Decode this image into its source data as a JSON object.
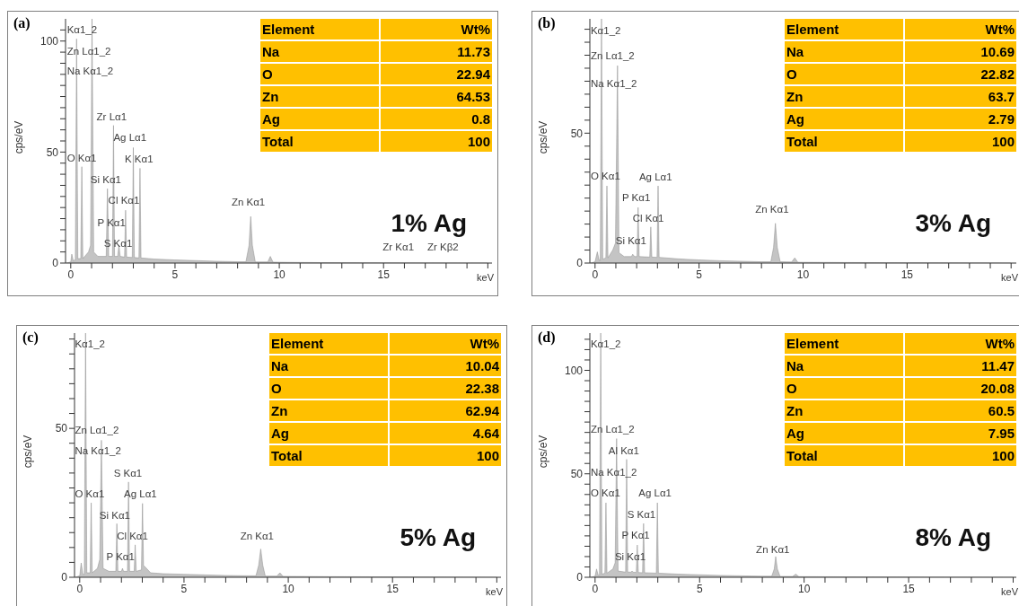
{
  "chart_data": [
    {
      "type": "area",
      "title": "(a)",
      "subtitle": "1% Ag",
      "xlabel": "keV",
      "ylabel": "cps/eV",
      "xlim": [
        -0.25,
        20.2
      ],
      "ylim": [
        0,
        110
      ],
      "xticks": [
        0,
        {
          "value": 1,
          "label": null
        },
        {
          "value": 2,
          "label": null
        },
        {
          "value": 3,
          "label": null
        },
        {
          "value": 4,
          "label": null
        },
        5,
        {
          "value": 6,
          "label": null
        },
        {
          "value": 7,
          "label": null
        },
        {
          "value": 8,
          "label": null
        },
        {
          "value": 9,
          "label": null
        },
        10,
        {
          "value": 11,
          "label": null
        },
        {
          "value": 12,
          "label": null
        },
        {
          "value": 13,
          "label": null
        },
        {
          "value": 14,
          "label": null
        },
        15,
        {
          "value": 16,
          "label": null
        },
        {
          "value": 17,
          "label": null
        },
        {
          "value": 18,
          "label": null
        },
        {
          "value": 19,
          "label": null
        },
        {
          "value": 20,
          "label": null
        }
      ],
      "yticks": [
        0,
        {
          "value": 5,
          "label": null
        },
        {
          "value": 10,
          "label": null
        },
        {
          "value": 15,
          "label": null
        },
        {
          "value": 20,
          "label": null
        },
        {
          "value": 25,
          "label": null
        },
        {
          "value": 30,
          "label": null
        },
        {
          "value": 35,
          "label": null
        },
        {
          "value": 40,
          "label": null
        },
        {
          "value": 45,
          "label": null
        },
        50,
        {
          "value": 55,
          "label": null
        },
        {
          "value": 60,
          "label": null
        },
        {
          "value": 65,
          "label": null
        },
        {
          "value": 70,
          "label": null
        },
        {
          "value": 75,
          "label": null
        },
        {
          "value": 80,
          "label": null
        },
        {
          "value": 85,
          "label": null
        },
        {
          "value": 90,
          "label": null
        },
        {
          "value": 95,
          "label": null
        },
        100,
        {
          "value": 105,
          "label": null
        }
      ],
      "series": [
        {
          "color": "#8c8c8c",
          "x": [
            -0.2,
            0,
            0.05,
            0.12,
            0.22,
            0.28,
            0.34,
            0.48,
            0.53,
            0.58,
            0.85,
            0.95,
            1.02,
            1.1,
            1.3,
            1.7,
            1.76,
            1.82,
            2.0,
            2.05,
            2.1,
            2.25,
            2.31,
            2.37,
            2.58,
            2.63,
            2.68,
            2.95,
            3.0,
            3.05,
            3.27,
            3.32,
            3.37,
            4,
            5,
            6,
            7,
            8,
            8.4,
            8.55,
            8.63,
            8.71,
            8.85,
            9.45,
            9.57,
            9.7,
            10.5,
            12,
            15,
            20
          ],
          "values": [
            0,
            0.5,
            4,
            1,
            1.5,
            101,
            2,
            2,
            43.4,
            2,
            5,
            8,
            110,
            5,
            3,
            3,
            33.5,
            3,
            3,
            62,
            3,
            3,
            8,
            3,
            2.7,
            23.8,
            2.7,
            2.5,
            52,
            2.5,
            2.3,
            42.7,
            2.3,
            1.8,
            1.4,
            1.1,
            0.8,
            0.6,
            0.6,
            8,
            21,
            8,
            0.5,
            0.5,
            3,
            0.4,
            0.3,
            0.2,
            0.1,
            0
          ]
        }
      ],
      "annotations": [
        "Element",
        "Wt%",
        "Na",
        "11.73",
        "O",
        "22.94",
        "Zn",
        "64.53",
        "Ag",
        "0.8",
        "Total",
        "100",
        "Kα1_2",
        "Zn Lα1_2",
        "Na Kα1_2",
        "Zr Lα1",
        "Ag Lα1",
        "O Kα1",
        "K Kα1",
        "Si Kα1",
        "Cl Kα1",
        "P Kα1",
        "S Kα1",
        "Zn Kα1",
        "Zr Kα1",
        "Zr Kβ2"
      ]
    },
    {
      "type": "area",
      "title": "(b)",
      "subtitle": "3% Ag",
      "xlabel": "keV",
      "ylabel": "cps/eV",
      "xlim": [
        -0.25,
        20.25
      ],
      "ylim": [
        0,
        94
      ],
      "xticks": [
        0,
        {
          "value": 1,
          "label": null
        },
        {
          "value": 2,
          "label": null
        },
        {
          "value": 3,
          "label": null
        },
        {
          "value": 4,
          "label": null
        },
        5,
        {
          "value": 6,
          "label": null
        },
        {
          "value": 7,
          "label": null
        },
        {
          "value": 8,
          "label": null
        },
        {
          "value": 9,
          "label": null
        },
        10,
        {
          "value": 11,
          "label": null
        },
        {
          "value": 12,
          "label": null
        },
        {
          "value": 13,
          "label": null
        },
        {
          "value": 14,
          "label": null
        },
        15,
        {
          "value": 16,
          "label": null
        },
        {
          "value": 17,
          "label": null
        },
        {
          "value": 18,
          "label": null
        },
        {
          "value": 19,
          "label": null
        },
        {
          "value": 20,
          "label": null
        }
      ],
      "yticks": [
        0,
        {
          "value": 5,
          "label": null
        },
        {
          "value": 10,
          "label": null
        },
        {
          "value": 15,
          "label": null
        },
        {
          "value": 20,
          "label": null
        },
        {
          "value": 25,
          "label": null
        },
        {
          "value": 30,
          "label": null
        },
        {
          "value": 35,
          "label": null
        },
        {
          "value": 40,
          "label": null
        },
        {
          "value": 45,
          "label": null
        },
        50,
        {
          "value": 55,
          "label": null
        },
        {
          "value": 60,
          "label": null
        },
        {
          "value": 65,
          "label": null
        },
        {
          "value": 70,
          "label": null
        },
        {
          "value": 75,
          "label": null
        },
        {
          "value": 80,
          "label": null
        },
        {
          "value": 85,
          "label": null
        },
        {
          "value": 90,
          "label": null
        }
      ],
      "series": [
        {
          "color": "#8c8c8c",
          "x": [
            -0.2,
            0,
            0.11,
            0.2,
            0.25,
            0.31,
            0.37,
            0.52,
            0.57,
            0.62,
            0.85,
            0.98,
            1.08,
            1.15,
            1.4,
            1.75,
            1.81,
            1.9,
            2.02,
            2.07,
            2.12,
            2.63,
            2.68,
            2.73,
            2.98,
            3.03,
            3.08,
            4,
            5,
            6,
            7,
            8,
            8.45,
            8.58,
            8.67,
            8.76,
            8.9,
            9.45,
            9.6,
            9.75,
            12,
            20
          ],
          "values": [
            0,
            0.5,
            4.3,
            1,
            1,
            94,
            1.5,
            2,
            29.7,
            2,
            5,
            7.7,
            76,
            4,
            2.5,
            2.5,
            3.4,
            2.5,
            2.5,
            21.4,
            2.5,
            2.3,
            13.9,
            2.3,
            2.2,
            29.7,
            2.2,
            1.6,
            1.2,
            0.9,
            0.7,
            0.5,
            0.5,
            6,
            15.3,
            6,
            0.5,
            0.4,
            2,
            0.3,
            0.2,
            0
          ]
        }
      ],
      "annotations": [
        "Element",
        "Wt%",
        "Na",
        "10.69",
        "O",
        "22.82",
        "Zn",
        "63.7",
        "Ag",
        "2.79",
        "Total",
        "100",
        "Kα1_2",
        "Zn Lα1_2",
        "Na Kα1_2",
        "O Kα1",
        "Ag Lα1",
        "P Kα1",
        "Cl Kα1",
        "Si Kα1",
        "Zn Kα1"
      ]
    },
    {
      "type": "area",
      "title": "(c)",
      "subtitle": "5% Ag",
      "xlabel": "keV",
      "ylabel": "cps/eV",
      "xlim": [
        -0.25,
        20.2
      ],
      "ylim": [
        0,
        82
      ],
      "xticks": [
        0,
        {
          "value": 1,
          "label": null
        },
        {
          "value": 2,
          "label": null
        },
        {
          "value": 3,
          "label": null
        },
        {
          "value": 4,
          "label": null
        },
        5,
        {
          "value": 6,
          "label": null
        },
        {
          "value": 7,
          "label": null
        },
        {
          "value": 8,
          "label": null
        },
        {
          "value": 9,
          "label": null
        },
        10,
        {
          "value": 11,
          "label": null
        },
        {
          "value": 12,
          "label": null
        },
        {
          "value": 13,
          "label": null
        },
        {
          "value": 14,
          "label": null
        },
        15,
        {
          "value": 16,
          "label": null
        },
        {
          "value": 17,
          "label": null
        },
        {
          "value": 18,
          "label": null
        },
        {
          "value": 19,
          "label": null
        },
        {
          "value": 20,
          "label": null
        }
      ],
      "yticks": [
        0,
        {
          "value": 5,
          "label": null
        },
        {
          "value": 10,
          "label": null
        },
        {
          "value": 15,
          "label": null
        },
        {
          "value": 20,
          "label": null
        },
        {
          "value": 25,
          "label": null
        },
        {
          "value": 30,
          "label": null
        },
        {
          "value": 35,
          "label": null
        },
        {
          "value": 40,
          "label": null
        },
        {
          "value": 45,
          "label": null
        },
        50,
        {
          "value": 55,
          "label": null
        },
        {
          "value": 60,
          "label": null
        },
        {
          "value": 65,
          "label": null
        },
        {
          "value": 70,
          "label": null
        },
        {
          "value": 75,
          "label": null
        },
        {
          "value": 80,
          "label": null
        }
      ],
      "series": [
        {
          "color": "#8c8c8c",
          "x": [
            -0.2,
            0,
            0.07,
            0.15,
            0.22,
            0.28,
            0.34,
            0.5,
            0.55,
            0.6,
            0.85,
            0.96,
            1.04,
            1.12,
            1.4,
            1.73,
            1.78,
            1.83,
            2.0,
            2.05,
            2.1,
            2.29,
            2.34,
            2.39,
            2.61,
            2.66,
            2.71,
            2.96,
            3.01,
            3.06,
            3.2,
            3.4,
            4,
            5,
            6,
            7,
            8,
            8.45,
            8.58,
            8.68,
            8.78,
            8.9,
            9.45,
            9.6,
            9.75,
            12,
            20
          ],
          "values": [
            0,
            0.5,
            4.8,
            1,
            1,
            82,
            1.5,
            1.5,
            25,
            1.5,
            3,
            6,
            46,
            3,
            2,
            2,
            18,
            2,
            2,
            3,
            2,
            2,
            32,
            2,
            2,
            10.9,
            2,
            2.5,
            24.8,
            4,
            3,
            1.5,
            1.2,
            1,
            0.8,
            0.6,
            0.5,
            0.5,
            4,
            9.5,
            4,
            0.4,
            0.4,
            1.5,
            0.3,
            0.2,
            0
          ]
        }
      ],
      "annotations": [
        "Element",
        "Wt%",
        "Na",
        "10.04",
        "O",
        "22.38",
        "Zn",
        "62.94",
        "Ag",
        "4.64",
        "Total",
        "100",
        "Kα1_2",
        "Zn Lα1_2",
        "Na Kα1_2",
        "S Kα1",
        "O Kα1",
        "Ag Lα1",
        "Si Kα1",
        "Cl Kα1",
        "P Kα1",
        "Zn Kα1"
      ]
    },
    {
      "type": "area",
      "title": "(d)",
      "subtitle": "8% Ag",
      "xlabel": "keV",
      "ylabel": "cps/eV",
      "xlim": [
        -0.25,
        20.15
      ],
      "ylim": [
        0,
        118
      ],
      "xticks": [
        0,
        {
          "value": 1,
          "label": null
        },
        {
          "value": 2,
          "label": null
        },
        {
          "value": 3,
          "label": null
        },
        {
          "value": 4,
          "label": null
        },
        5,
        {
          "value": 6,
          "label": null
        },
        {
          "value": 7,
          "label": null
        },
        {
          "value": 8,
          "label": null
        },
        {
          "value": 9,
          "label": null
        },
        10,
        {
          "value": 11,
          "label": null
        },
        {
          "value": 12,
          "label": null
        },
        {
          "value": 13,
          "label": null
        },
        {
          "value": 14,
          "label": null
        },
        15,
        {
          "value": 16,
          "label": null
        },
        {
          "value": 17,
          "label": null
        },
        {
          "value": 18,
          "label": null
        },
        {
          "value": 19,
          "label": null
        },
        {
          "value": 20,
          "label": null
        }
      ],
      "yticks": [
        0,
        {
          "value": 5,
          "label": null
        },
        {
          "value": 10,
          "label": null
        },
        {
          "value": 15,
          "label": null
        },
        {
          "value": 20,
          "label": null
        },
        {
          "value": 25,
          "label": null
        },
        {
          "value": 30,
          "label": null
        },
        {
          "value": 35,
          "label": null
        },
        {
          "value": 40,
          "label": null
        },
        {
          "value": 45,
          "label": null
        },
        50,
        {
          "value": 55,
          "label": null
        },
        {
          "value": 60,
          "label": null
        },
        {
          "value": 65,
          "label": null
        },
        {
          "value": 70,
          "label": null
        },
        {
          "value": 75,
          "label": null
        },
        {
          "value": 80,
          "label": null
        },
        {
          "value": 85,
          "label": null
        },
        {
          "value": 90,
          "label": null
        },
        {
          "value": 95,
          "label": null
        },
        100,
        {
          "value": 105,
          "label": null
        },
        {
          "value": 110,
          "label": null
        },
        {
          "value": 115,
          "label": null
        }
      ],
      "series": [
        {
          "color": "#8c8c8c",
          "x": [
            -0.2,
            0,
            0.07,
            0.15,
            0.21,
            0.27,
            0.33,
            0.47,
            0.52,
            0.57,
            0.85,
            0.96,
            1.03,
            1.1,
            1.46,
            1.51,
            1.56,
            1.72,
            1.77,
            1.82,
            1.97,
            2.02,
            2.07,
            2.27,
            2.32,
            2.37,
            2.93,
            2.98,
            3.03,
            4,
            5,
            6,
            7,
            8,
            8.45,
            8.57,
            8.64,
            8.72,
            8.85,
            9.45,
            9.6,
            9.75,
            12,
            20
          ],
          "values": [
            0,
            0.5,
            4,
            1,
            1,
            118,
            1.5,
            2,
            36,
            2,
            4,
            7,
            67,
            3,
            2.5,
            57,
            2.5,
            2.5,
            3,
            2.5,
            2.3,
            15.6,
            2.3,
            2.2,
            26,
            2.2,
            2,
            36,
            2,
            1.5,
            1.2,
            0.9,
            0.7,
            0.5,
            0.5,
            4,
            10,
            4,
            0.4,
            0.4,
            1.5,
            0.3,
            0.2,
            0
          ]
        }
      ],
      "annotations": [
        "Element",
        "Wt%",
        "Na",
        "11.47",
        "O",
        "20.08",
        "Zn",
        "60.5",
        "Ag",
        "7.95",
        "Total",
        "100",
        "Kα1_2",
        "Zn Lα1_2",
        "Al Kα1",
        "Na Kα1_2",
        "O Kα1",
        "Ag Lα1",
        "S Kα1",
        "P Kα1",
        "Si Kα1",
        "Zn Kα1"
      ]
    }
  ]
}
